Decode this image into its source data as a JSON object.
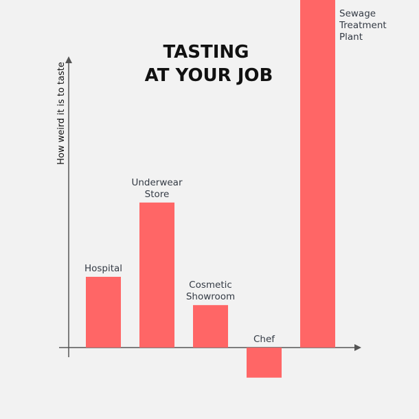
{
  "chart_data": {
    "type": "bar",
    "title_lines": [
      "TASTING",
      "AT YOUR JOB"
    ],
    "ylabel": "How weird it is to taste",
    "xlabel": "",
    "categories": [
      [
        "Hospital"
      ],
      [
        "Underwear",
        "Store"
      ],
      [
        "Cosmetic",
        "Showroom"
      ],
      [
        "Chef"
      ],
      [
        "Sewage",
        "Treatment",
        "Plant"
      ]
    ],
    "values": [
      20,
      41,
      12,
      -8.5,
      100
    ],
    "ylim": [
      -20,
      100
    ],
    "grid": false,
    "colors": {
      "bar": "#ff6666",
      "axis": "#555555",
      "label": "#333a44",
      "title": "#111111",
      "background": "#f2f2f2"
    }
  }
}
